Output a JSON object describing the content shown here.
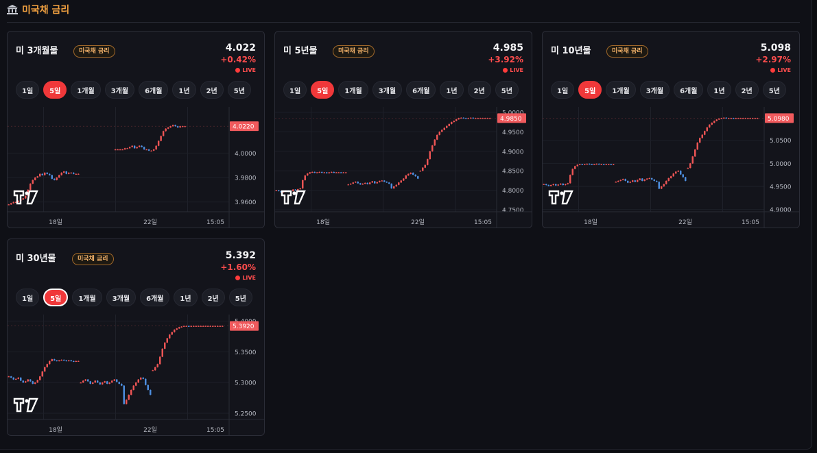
{
  "section": {
    "title": "미국채 금리",
    "icon": "bank-icon"
  },
  "colors": {
    "up": "#ef5555",
    "down": "#4e8fe0",
    "accent": "#f0383a",
    "tag": "#f3b26a"
  },
  "range_buttons": [
    "1일",
    "5일",
    "1개월",
    "3개월",
    "6개월",
    "1년",
    "2년",
    "5년"
  ],
  "cards": [
    {
      "name": "미 3개월물",
      "tag": "미국채 금리",
      "value": "4.022",
      "change": "+0.42%",
      "live": "LIVE",
      "active_range": "5일",
      "chart_data": {
        "type": "candlestick",
        "x_ticks": [
          "18일",
          "22일",
          "15:05"
        ],
        "y_ticks": [
          "4.0000",
          "3.9800",
          "3.9600"
        ],
        "ylim": [
          3.952,
          4.035
        ],
        "last_price_label": "4.0220",
        "segments": [
          {
            "x_start": 0.0,
            "x_end": 1.0,
            "points": [
              3.958,
              3.959,
              3.96,
              3.96,
              3.961,
              3.962,
              3.963,
              3.965,
              3.97,
              3.975,
              3.978,
              3.98,
              3.981,
              3.983,
              3.982,
              3.984,
              3.983,
              3.982,
              3.979,
              3.978,
              3.98,
              3.982,
              3.984,
              3.985,
              3.983,
              3.984,
              3.984,
              3.983,
              3.983,
              3.983
            ]
          },
          {
            "x_start": 1.48,
            "x_end": 2.48,
            "points": [
              4.003,
              4.003,
              4.003,
              4.003,
              4.004,
              4.004,
              4.005,
              4.006,
              4.004,
              4.005,
              4.006,
              4.005,
              4.003,
              4.003,
              4.002,
              4.002,
              4.003,
              4.006,
              4.01,
              4.014,
              4.018,
              4.02,
              4.021,
              4.022,
              4.023,
              4.022,
              4.021,
              4.022,
              4.022,
              4.022
            ]
          }
        ]
      }
    },
    {
      "name": "미 5년물",
      "tag": "미국채 금리",
      "value": "4.985",
      "change": "+3.92%",
      "live": "LIVE",
      "active_range": "5일",
      "chart_data": {
        "type": "candlestick",
        "x_ticks": [
          "18일",
          "22일",
          "15:05"
        ],
        "y_ticks": [
          "5.0000",
          "4.9500",
          "4.9000",
          "4.8500",
          "4.8000",
          "4.7500"
        ],
        "ylim": [
          4.745,
          5.005
        ],
        "last_price_label": "4.9850",
        "segments": [
          {
            "x_start": 0.0,
            "x_end": 1.0,
            "points": [
              4.8,
              4.798,
              4.795,
              4.797,
              4.799,
              4.796,
              4.798,
              4.802,
              4.8,
              4.803,
              4.805,
              4.826,
              4.838,
              4.843,
              4.846,
              4.847,
              4.845,
              4.846,
              4.847,
              4.845,
              4.846,
              4.844,
              4.846,
              4.847,
              4.845,
              4.846,
              4.846,
              4.845,
              4.846,
              4.846
            ]
          },
          {
            "x_start": 1.0,
            "x_end": 2.0,
            "points": [
              4.815,
              4.817,
              4.82,
              4.822,
              4.818,
              4.815,
              4.817,
              4.819,
              4.816,
              4.82,
              4.823,
              4.818,
              4.821,
              4.824,
              4.825,
              4.822,
              4.82,
              4.817,
              4.805,
              4.81,
              4.814,
              4.82,
              4.825,
              4.83,
              4.838,
              4.842,
              4.845,
              4.84,
              4.836,
              4.83
            ]
          },
          {
            "x_start": 2.0,
            "x_end": 3.0,
            "points": [
              4.85,
              4.858,
              4.865,
              4.88,
              4.9,
              4.915,
              4.93,
              4.942,
              4.95,
              4.955,
              4.96,
              4.965,
              4.97,
              4.975,
              4.978,
              4.982,
              4.985,
              4.986,
              4.985,
              4.984,
              4.985,
              4.986,
              4.985,
              4.985,
              4.985,
              4.985,
              4.985,
              4.985,
              4.985,
              4.985
            ]
          }
        ]
      }
    },
    {
      "name": "미 10년물",
      "tag": "미국채 금리",
      "value": "5.098",
      "change": "+2.97%",
      "live": "LIVE",
      "active_range": "5일",
      "chart_data": {
        "type": "candlestick",
        "x_ticks": [
          "18일",
          "22일",
          "15:05"
        ],
        "y_ticks": [
          "5.0500",
          "5.0000",
          "4.9500",
          "4.9000"
        ],
        "ylim": [
          4.895,
          5.115
        ],
        "last_price_label": "5.0980",
        "segments": [
          {
            "x_start": 0.0,
            "x_end": 1.0,
            "points": [
              4.955,
              4.953,
              4.951,
              4.953,
              4.955,
              4.952,
              4.954,
              4.956,
              4.953,
              4.955,
              4.957,
              4.975,
              4.988,
              4.994,
              4.997,
              4.998,
              4.997,
              4.998,
              4.999,
              4.998,
              4.997,
              4.998,
              4.999,
              4.998,
              4.998,
              4.997,
              4.998,
              4.998,
              4.997,
              4.998
            ]
          },
          {
            "x_start": 1.0,
            "x_end": 2.0,
            "points": [
              4.96,
              4.962,
              4.964,
              4.966,
              4.962,
              4.958,
              4.96,
              4.963,
              4.96,
              4.964,
              4.967,
              4.962,
              4.965,
              4.967,
              4.968,
              4.965,
              4.962,
              4.96,
              4.945,
              4.95,
              4.955,
              4.962,
              4.968,
              4.972,
              4.978,
              4.982,
              4.984,
              4.976,
              4.97,
              4.962
            ]
          },
          {
            "x_start": 2.0,
            "x_end": 3.0,
            "points": [
              4.99,
              5.0,
              5.015,
              5.03,
              5.045,
              5.055,
              5.062,
              5.07,
              5.078,
              5.084,
              5.088,
              5.092,
              5.095,
              5.097,
              5.098,
              5.099,
              5.098,
              5.098,
              5.098,
              5.097,
              5.098,
              5.098,
              5.098,
              5.098,
              5.098,
              5.098,
              5.098,
              5.098,
              5.098,
              5.098
            ]
          }
        ]
      }
    },
    {
      "name": "미 30년물",
      "tag": "미국채 금리",
      "value": "5.392",
      "change": "+1.60%",
      "live": "LIVE",
      "active_range": "5일",
      "chart_data": {
        "type": "candlestick",
        "x_ticks": [
          "18일",
          "22일",
          "15:05"
        ],
        "y_ticks": [
          "5.4000",
          "5.3500",
          "5.3000",
          "5.2500"
        ],
        "ylim": [
          5.24,
          5.405
        ],
        "last_price_label": "5.3920",
        "segments": [
          {
            "x_start": 0.0,
            "x_end": 1.0,
            "points": [
              5.31,
              5.308,
              5.305,
              5.306,
              5.308,
              5.303,
              5.3,
              5.302,
              5.305,
              5.302,
              5.298,
              5.3,
              5.304,
              5.31,
              5.318,
              5.325,
              5.33,
              5.335,
              5.338,
              5.336,
              5.335,
              5.336,
              5.337,
              5.336,
              5.335,
              5.336,
              5.335,
              5.334,
              5.335,
              5.335
            ]
          },
          {
            "x_start": 1.0,
            "x_end": 2.0,
            "points": [
              5.3,
              5.303,
              5.305,
              5.302,
              5.298,
              5.3,
              5.303,
              5.3,
              5.297,
              5.3,
              5.302,
              5.298,
              5.3,
              5.303,
              5.305,
              5.301,
              5.298,
              5.295,
              5.265,
              5.272,
              5.28,
              5.288,
              5.295,
              5.3,
              5.305,
              5.308,
              5.306,
              5.296,
              5.288,
              5.28
            ]
          },
          {
            "x_start": 2.0,
            "x_end": 3.0,
            "points": [
              5.32,
              5.325,
              5.33,
              5.342,
              5.355,
              5.365,
              5.372,
              5.378,
              5.382,
              5.386,
              5.388,
              5.39,
              5.391,
              5.392,
              5.392,
              5.391,
              5.392,
              5.392,
              5.392,
              5.392,
              5.392,
              5.392,
              5.392,
              5.392,
              5.392,
              5.392,
              5.392,
              5.392,
              5.392,
              5.392
            ]
          }
        ]
      }
    }
  ]
}
